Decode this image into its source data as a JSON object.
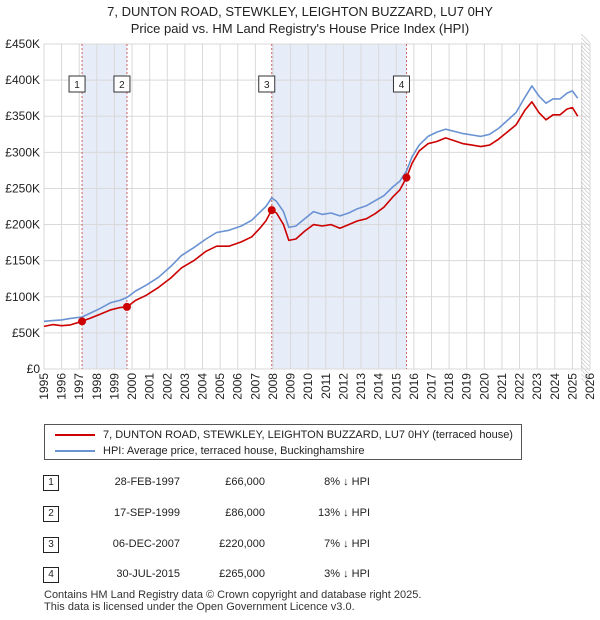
{
  "title_line1": "7, DUNTON ROAD, STEWKLEY, LEIGHTON BUZZARD, LU7 0HY",
  "title_line2": "Price paid vs. HM Land Registry's House Price Index (HPI)",
  "colors": {
    "property": "#cc0000",
    "hpi": "#6a93d4",
    "band": "#e6ecf8",
    "marker_dash": "#d06060"
  },
  "chart_data": {
    "type": "line",
    "y_ticks": [
      "£0",
      "£50K",
      "£100K",
      "£150K",
      "£200K",
      "£250K",
      "£300K",
      "£350K",
      "£400K",
      "£450K"
    ],
    "x_ticks": [
      "1995",
      "1996",
      "1997",
      "1998",
      "1999",
      "2000",
      "2001",
      "2002",
      "2003",
      "2004",
      "2005",
      "2006",
      "2007",
      "2008",
      "2009",
      "2010",
      "2011",
      "2012",
      "2013",
      "2014",
      "2015",
      "2016",
      "2017",
      "2018",
      "2019",
      "2020",
      "2021",
      "2022",
      "2023",
      "2024",
      "2025",
      "2026"
    ],
    "xlim": [
      1995,
      2026
    ],
    "ylim": [
      0,
      450000
    ],
    "series": [
      {
        "name": "7, DUNTON ROAD, STEWKLEY, LEIGHTON BUZZARD, LU7 0HY (terraced house)",
        "points": [
          [
            1995.0,
            59000
          ],
          [
            1995.5,
            61500
          ],
          [
            1996.0,
            60000
          ],
          [
            1996.5,
            61000
          ],
          [
            1997.16,
            66000
          ],
          [
            1997.6,
            70000
          ],
          [
            1998.2,
            76000
          ],
          [
            1998.8,
            82000
          ],
          [
            1999.3,
            85000
          ],
          [
            1999.71,
            86000
          ],
          [
            2000.2,
            95000
          ],
          [
            2000.8,
            102000
          ],
          [
            2001.5,
            113000
          ],
          [
            2002.2,
            126000
          ],
          [
            2002.8,
            140000
          ],
          [
            2003.5,
            150000
          ],
          [
            2004.2,
            163000
          ],
          [
            2004.8,
            170000
          ],
          [
            2005.5,
            170000
          ],
          [
            2006.2,
            176000
          ],
          [
            2006.8,
            183000
          ],
          [
            2007.3,
            196000
          ],
          [
            2007.6,
            205000
          ],
          [
            2007.93,
            220000
          ],
          [
            2008.2,
            216000
          ],
          [
            2008.6,
            200000
          ],
          [
            2008.9,
            178000
          ],
          [
            2009.3,
            180000
          ],
          [
            2009.8,
            191000
          ],
          [
            2010.3,
            200000
          ],
          [
            2010.8,
            198000
          ],
          [
            2011.3,
            200000
          ],
          [
            2011.8,
            195000
          ],
          [
            2012.3,
            200000
          ],
          [
            2012.8,
            205000
          ],
          [
            2013.3,
            208000
          ],
          [
            2013.8,
            215000
          ],
          [
            2014.3,
            224000
          ],
          [
            2014.8,
            238000
          ],
          [
            2015.2,
            248000
          ],
          [
            2015.58,
            265000
          ],
          [
            2015.9,
            285000
          ],
          [
            2016.3,
            302000
          ],
          [
            2016.8,
            312000
          ],
          [
            2017.3,
            315000
          ],
          [
            2017.8,
            320000
          ],
          [
            2018.3,
            316000
          ],
          [
            2018.8,
            312000
          ],
          [
            2019.3,
            310000
          ],
          [
            2019.8,
            308000
          ],
          [
            2020.3,
            310000
          ],
          [
            2020.8,
            318000
          ],
          [
            2021.3,
            328000
          ],
          [
            2021.8,
            338000
          ],
          [
            2022.3,
            358000
          ],
          [
            2022.7,
            370000
          ],
          [
            2023.1,
            355000
          ],
          [
            2023.5,
            345000
          ],
          [
            2023.9,
            352000
          ],
          [
            2024.3,
            352000
          ],
          [
            2024.7,
            360000
          ],
          [
            2025.0,
            362000
          ],
          [
            2025.3,
            350000
          ]
        ]
      },
      {
        "name": "HPI: Average price, terraced house, Buckinghamshire",
        "points": [
          [
            1995.0,
            66000
          ],
          [
            1995.5,
            67000
          ],
          [
            1996.0,
            68000
          ],
          [
            1996.5,
            70000
          ],
          [
            1997.16,
            72000
          ],
          [
            1997.6,
            77000
          ],
          [
            1998.2,
            84000
          ],
          [
            1998.8,
            92000
          ],
          [
            1999.3,
            95000
          ],
          [
            1999.71,
            99000
          ],
          [
            2000.2,
            108000
          ],
          [
            2000.8,
            116000
          ],
          [
            2001.5,
            127000
          ],
          [
            2002.2,
            142000
          ],
          [
            2002.8,
            157000
          ],
          [
            2003.5,
            168000
          ],
          [
            2004.2,
            180000
          ],
          [
            2004.8,
            189000
          ],
          [
            2005.5,
            192000
          ],
          [
            2006.2,
            198000
          ],
          [
            2006.8,
            206000
          ],
          [
            2007.3,
            218000
          ],
          [
            2007.6,
            225000
          ],
          [
            2007.93,
            237000
          ],
          [
            2008.2,
            232000
          ],
          [
            2008.6,
            218000
          ],
          [
            2008.9,
            196000
          ],
          [
            2009.3,
            198000
          ],
          [
            2009.8,
            208000
          ],
          [
            2010.3,
            218000
          ],
          [
            2010.8,
            214000
          ],
          [
            2011.3,
            216000
          ],
          [
            2011.8,
            212000
          ],
          [
            2012.3,
            216000
          ],
          [
            2012.8,
            222000
          ],
          [
            2013.3,
            226000
          ],
          [
            2013.8,
            233000
          ],
          [
            2014.3,
            240000
          ],
          [
            2014.8,
            252000
          ],
          [
            2015.2,
            260000
          ],
          [
            2015.58,
            274000
          ],
          [
            2015.9,
            294000
          ],
          [
            2016.3,
            310000
          ],
          [
            2016.8,
            322000
          ],
          [
            2017.3,
            328000
          ],
          [
            2017.8,
            332000
          ],
          [
            2018.3,
            329000
          ],
          [
            2018.8,
            326000
          ],
          [
            2019.3,
            324000
          ],
          [
            2019.8,
            322000
          ],
          [
            2020.3,
            325000
          ],
          [
            2020.8,
            333000
          ],
          [
            2021.3,
            344000
          ],
          [
            2021.8,
            355000
          ],
          [
            2022.3,
            376000
          ],
          [
            2022.7,
            392000
          ],
          [
            2023.1,
            378000
          ],
          [
            2023.5,
            368000
          ],
          [
            2023.9,
            374000
          ],
          [
            2024.3,
            374000
          ],
          [
            2024.7,
            382000
          ],
          [
            2025.0,
            385000
          ],
          [
            2025.3,
            375000
          ]
        ]
      }
    ],
    "sale_markers": [
      {
        "label": "1",
        "x": 1997.16,
        "y": 66000
      },
      {
        "label": "2",
        "x": 1999.71,
        "y": 86000
      },
      {
        "label": "3",
        "x": 2007.93,
        "y": 220000
      },
      {
        "label": "4",
        "x": 2015.58,
        "y": 265000
      }
    ],
    "shaded_bands": [
      [
        1997.16,
        1999.71
      ],
      [
        2007.93,
        2015.58
      ]
    ],
    "forecast_start": 2025.5
  },
  "legend": {
    "property_label": "7, DUNTON ROAD, STEWKLEY, LEIGHTON BUZZARD, LU7 0HY (terraced house)",
    "hpi_label": "HPI: Average price, terraced house, Buckinghamshire"
  },
  "transactions": [
    {
      "num": "1",
      "date": "28-FEB-1997",
      "price": "£66,000",
      "hpi": "8% ↓ HPI"
    },
    {
      "num": "2",
      "date": "17-SEP-1999",
      "price": "£86,000",
      "hpi": "13% ↓ HPI"
    },
    {
      "num": "3",
      "date": "06-DEC-2007",
      "price": "£220,000",
      "hpi": "7% ↓ HPI"
    },
    {
      "num": "4",
      "date": "30-JUL-2015",
      "price": "£265,000",
      "hpi": "3% ↓ HPI"
    }
  ],
  "footer_line1": "Contains HM Land Registry data © Crown copyright and database right 2025.",
  "footer_line2": "This data is licensed under the Open Government Licence v3.0."
}
